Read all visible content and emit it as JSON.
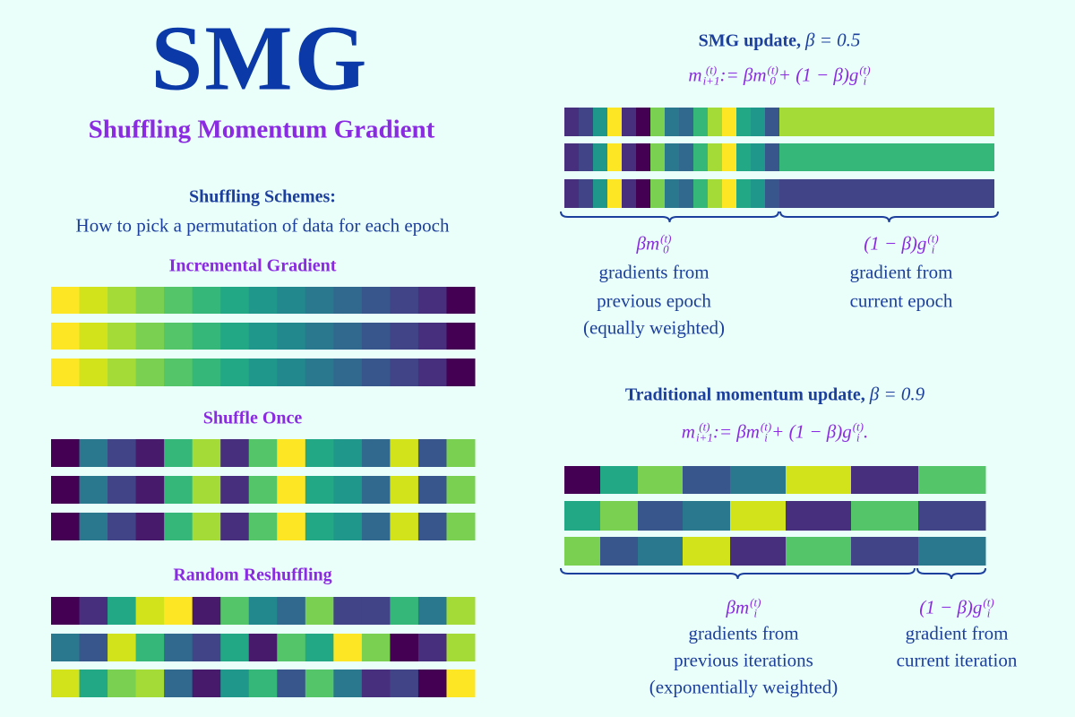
{
  "title": "SMG",
  "subtitle": "Shuffling Momentum Gradient",
  "schemes": {
    "heading": "Shuffling Schemes:",
    "description": "How to pick a permutation of data for each epoch",
    "items": [
      "Incremental Gradient",
      "Shuffle Once",
      "Random Reshuffling"
    ]
  },
  "smg": {
    "heading": "SMG update,",
    "beta": "β = 0.5",
    "formula": [
      {
        "base": "m",
        "sub": "i+1",
        "sup": "(t)"
      },
      {
        "base": " := βm",
        "sub": "0",
        "sup": "(t)"
      },
      {
        "base": " + (1 − β)g",
        "sub": "i",
        "sup": "(t)"
      }
    ],
    "left": {
      "formula": [
        {
          "base": "βm",
          "sub": "0",
          "sup": "(t)"
        }
      ],
      "lines": [
        "gradients from",
        "previous epoch",
        "(equally weighted)"
      ]
    },
    "right": {
      "formula": [
        {
          "base": "(1 − β)g",
          "sub": "i",
          "sup": "(t)"
        }
      ],
      "lines": [
        "gradient from",
        "current epoch"
      ]
    }
  },
  "traditional": {
    "heading": "Traditional momentum update,",
    "beta": "β = 0.9",
    "formula": [
      {
        "base": "m",
        "sub": "i+1",
        "sup": "(t)"
      },
      {
        "base": " := βm",
        "sub": "i",
        "sup": "(t)"
      },
      {
        "base": " + (1 − β)g",
        "sub": "i",
        "sup": "(t)"
      },
      {
        "base": "."
      }
    ],
    "left": {
      "formula": [
        {
          "base": "βm",
          "sub": "i",
          "sup": "(t)"
        }
      ],
      "lines": [
        "gradients from",
        "previous iterations",
        "(exponentially weighted)"
      ]
    },
    "right": {
      "formula": [
        {
          "base": "(1 − β)g",
          "sub": "i",
          "sup": "(t)"
        }
      ],
      "lines": [
        "gradient from",
        "current iteration"
      ]
    }
  }
}
